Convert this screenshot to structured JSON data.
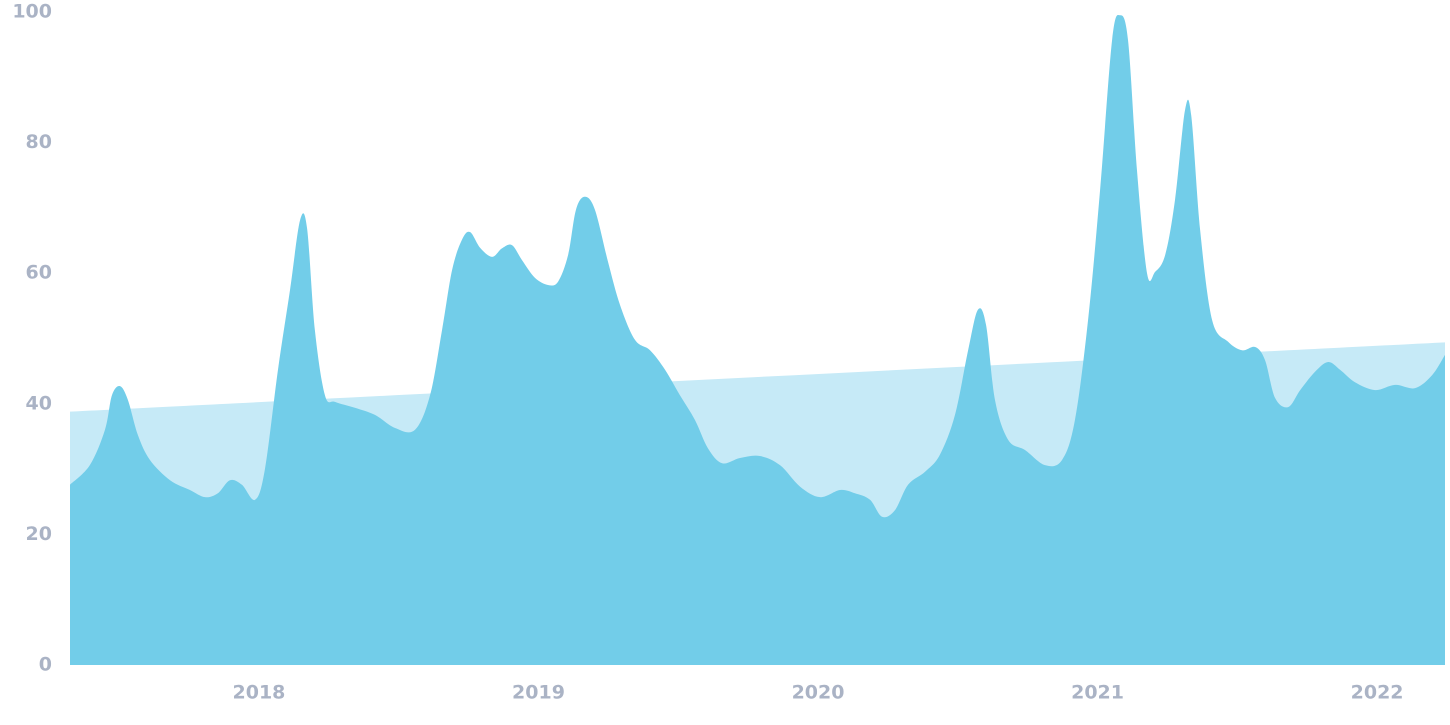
{
  "chart_data": {
    "type": "area",
    "xlim": [
      2017.324,
      2022.243
    ],
    "xticks": [
      2018,
      2019,
      2020,
      2021,
      2022
    ],
    "ylim": [
      0,
      100
    ],
    "yticks": [
      0,
      20,
      40,
      60,
      80,
      100
    ],
    "grid": false,
    "series": [
      {
        "color": "#c6eaf7",
        "x": [
          2017.324,
          2022.243
        ],
        "values": [
          38.8,
          49.4
        ]
      },
      {
        "color": "#72cde9",
        "x": [
          2017.324,
          2017.395,
          2017.449,
          2017.474,
          2017.503,
          2017.531,
          2017.567,
          2017.61,
          2017.682,
          2017.753,
          2017.807,
          2017.853,
          2017.896,
          2017.939,
          2017.986,
          2018.021,
          2018.068,
          2018.111,
          2018.147,
          2018.172,
          2018.2,
          2018.236,
          2018.272,
          2018.343,
          2018.415,
          2018.487,
          2018.558,
          2018.612,
          2018.655,
          2018.691,
          2018.726,
          2018.755,
          2018.791,
          2018.834,
          2018.869,
          2018.905,
          2018.941,
          2018.987,
          2019.034,
          2019.07,
          2019.106,
          2019.134,
          2019.166,
          2019.202,
          2019.249,
          2019.292,
          2019.345,
          2019.399,
          2019.453,
          2019.506,
          2019.56,
          2019.606,
          2019.657,
          2019.721,
          2019.792,
          2019.864,
          2019.936,
          2020.007,
          2020.079,
          2020.132,
          2020.186,
          2020.229,
          2020.275,
          2020.322,
          2020.383,
          2020.436,
          2020.49,
          2020.537,
          2020.572,
          2020.601,
          2020.633,
          2020.68,
          2020.741,
          2020.812,
          2020.873,
          2020.919,
          2020.966,
          2021.009,
          2021.052,
          2021.08,
          2021.109,
          2021.141,
          2021.177,
          2021.206,
          2021.242,
          2021.277,
          2021.313,
          2021.335,
          2021.367,
          2021.41,
          2021.467,
          2021.517,
          2021.564,
          2021.599,
          2021.635,
          2021.682,
          2021.725,
          2021.778,
          2021.825,
          2021.868,
          2021.921,
          2021.993,
          2022.064,
          2022.136,
          2022.197,
          2022.243
        ],
        "values": [
          27.6,
          30.6,
          36,
          41.3,
          42.7,
          40.6,
          35.2,
          31.4,
          28.3,
          26.8,
          25.7,
          26.3,
          28.3,
          27.6,
          25.3,
          29.9,
          45.2,
          57.4,
          68.1,
          66.9,
          51.3,
          41.3,
          40.3,
          39.4,
          38.3,
          36.3,
          36,
          41.3,
          51.3,
          60.5,
          65.1,
          66.3,
          63.9,
          62.5,
          63.8,
          64.3,
          62,
          59.3,
          58.2,
          58.7,
          62.8,
          69.7,
          71.7,
          69.7,
          61.7,
          55.1,
          49.8,
          48.2,
          45.2,
          41.3,
          37.5,
          33.2,
          30.9,
          31.7,
          32,
          30.6,
          27.3,
          25.7,
          26.8,
          26.3,
          25.3,
          22.7,
          23.7,
          27.6,
          29.6,
          32.2,
          38.3,
          48.2,
          54.4,
          52.1,
          40.6,
          34.5,
          32.9,
          30.6,
          31.4,
          37.5,
          52.8,
          72.7,
          95.7,
          99.5,
          95.7,
          75.8,
          60,
          60.2,
          62.8,
          71.2,
          85,
          84.2,
          66.6,
          52.8,
          49.5,
          48.2,
          48.7,
          46.7,
          40.9,
          39.5,
          42.1,
          44.9,
          46.4,
          45.2,
          43.3,
          42.1,
          42.9,
          42.4,
          44.4,
          47.5
        ]
      }
    ]
  }
}
